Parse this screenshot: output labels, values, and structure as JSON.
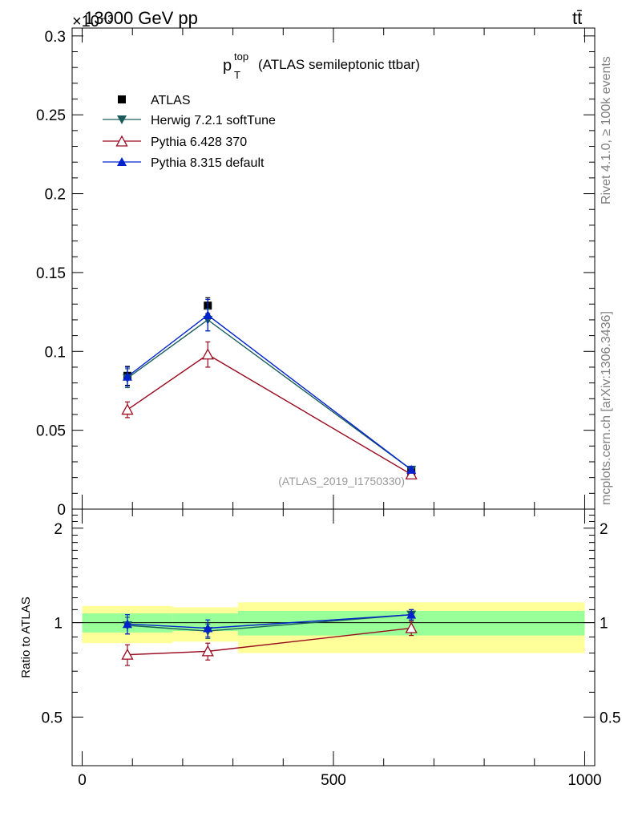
{
  "header": {
    "energy_label": "13000 GeV pp",
    "process_label": "tt̄",
    "exponent_label": "×10⁻³",
    "side_label_top": "Rivet 4.1.0, ≥ 100k events",
    "side_label_bottom": "mcplots.cern.ch [arXiv:1306.3436]",
    "analysis_tag": "(ATLAS_2019_I1750330)"
  },
  "title": {
    "main": "p",
    "superscript": "top",
    "subscript": "T",
    "suffix": "(ATLAS semileptonic ttbar)"
  },
  "colors": {
    "atlas": "#000000",
    "herwig": "#1a5c5c",
    "pythia6": "#990a1e",
    "pythia8": "#0022cc",
    "band_inner": "#99ff99",
    "band_outer": "#ffff99"
  },
  "chart_data": [
    {
      "type": "scatter",
      "panel": "main",
      "x": [
        90,
        250,
        655
      ],
      "xlim": [
        -20,
        1020
      ],
      "ylim": [
        0,
        0.305
      ],
      "yticks": [
        0,
        0.05,
        0.1,
        0.15,
        0.2,
        0.25,
        0.3
      ],
      "ytick_labels": [
        "0",
        "0.05",
        "0.1",
        "0.15",
        "0.2",
        "0.25",
        "0.3"
      ],
      "series": [
        {
          "name": "ATLAS",
          "key": "atlas",
          "marker": "square",
          "line": false,
          "values": [
            0.0845,
            0.129,
            0.024
          ],
          "errors": [
            0.006,
            0.005,
            0.002
          ]
        },
        {
          "name": "Herwig 7.2.1 softTune",
          "key": "herwig",
          "marker": "triangle-down",
          "line": true,
          "values": [
            0.083,
            0.12,
            0.025
          ],
          "errors": [
            0.006,
            0.007,
            0.002
          ]
        },
        {
          "name": "Pythia 6.428 370",
          "key": "pythia6",
          "marker": "triangle-up-open",
          "line": true,
          "values": [
            0.063,
            0.098,
            0.022
          ],
          "errors": [
            0.005,
            0.008,
            0.002
          ]
        },
        {
          "name": "Pythia 8.315 default",
          "key": "pythia8",
          "marker": "triangle-up",
          "line": true,
          "values": [
            0.084,
            0.123,
            0.025
          ],
          "errors": [
            0.006,
            0.01,
            0.002
          ]
        }
      ]
    },
    {
      "type": "scatter",
      "panel": "ratio",
      "ylabel": "Ratio to ATLAS",
      "x": [
        90,
        250,
        655
      ],
      "xlim": [
        -20,
        1020
      ],
      "ylim": [
        0.35,
        2.3
      ],
      "yticks": [
        0.5,
        1,
        2
      ],
      "ytick_labels": [
        "0.5",
        "1",
        "2"
      ],
      "xticks": [
        0,
        500,
        1000
      ],
      "xtick_labels": [
        "0",
        "500",
        "1000"
      ],
      "bands": [
        {
          "x_from": 0,
          "x_to": 180,
          "inner": [
            0.93,
            1.07
          ],
          "outer": [
            0.86,
            1.13
          ]
        },
        {
          "x_from": 180,
          "x_to": 310,
          "inner": [
            0.94,
            1.07
          ],
          "outer": [
            0.87,
            1.12
          ]
        },
        {
          "x_from": 310,
          "x_to": 1000,
          "inner": [
            0.91,
            1.09
          ],
          "outer": [
            0.8,
            1.16
          ]
        }
      ],
      "series": [
        {
          "name": "Herwig 7.2.1 softTune",
          "key": "herwig",
          "marker": "triangle-down",
          "values": [
            0.98,
            0.94,
            1.06
          ],
          "errors": [
            0.06,
            0.05,
            0.04
          ]
        },
        {
          "name": "Pythia 6.428 370",
          "key": "pythia6",
          "marker": "triangle-up-open",
          "values": [
            0.79,
            0.81,
            0.96
          ],
          "errors": [
            0.06,
            0.05,
            0.05
          ]
        },
        {
          "name": "Pythia 8.315 default",
          "key": "pythia8",
          "marker": "triangle-up",
          "values": [
            0.99,
            0.96,
            1.06
          ],
          "errors": [
            0.07,
            0.06,
            0.04
          ]
        }
      ]
    }
  ]
}
